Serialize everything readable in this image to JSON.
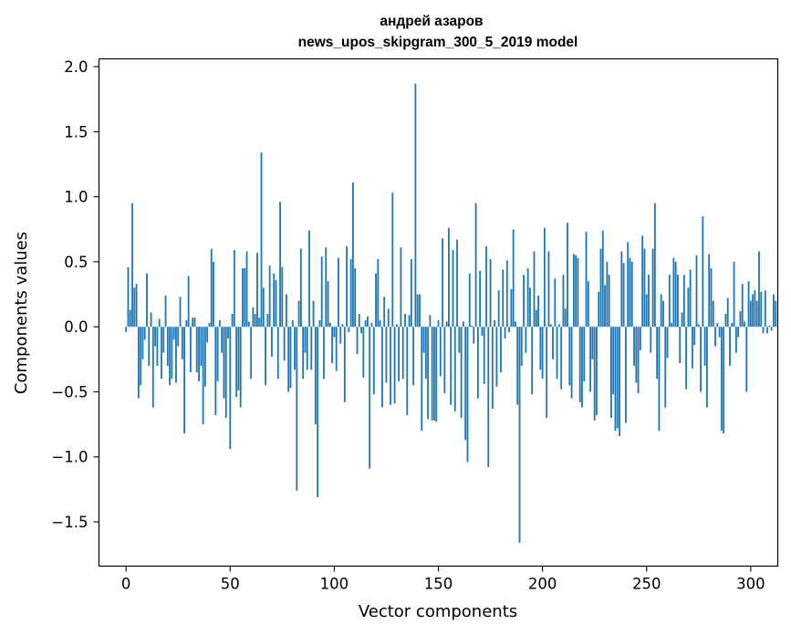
{
  "chart_data": {
    "type": "bar",
    "title": "андрей азаров",
    "subtitle": "news_upos_skipgram_300_5_2019 model",
    "xlabel": "Vector components",
    "ylabel": "Components values",
    "xlim": [
      -13,
      313
    ],
    "ylim": [
      -1.84,
      2.06
    ],
    "xticks": [
      0,
      50,
      100,
      150,
      200,
      250,
      300
    ],
    "xtick_labels": [
      "0",
      "50",
      "100",
      "150",
      "200",
      "250",
      "300"
    ],
    "yticks": [
      -1.5,
      -1.0,
      -0.5,
      0.0,
      0.5,
      1.0,
      1.5,
      2.0
    ],
    "ytick_labels": [
      "−1.5",
      "−1.0",
      "−0.5",
      "0.0",
      "0.5",
      "1.0",
      "1.5",
      "2.0"
    ],
    "bar_color": "#1f77b4",
    "grid": false,
    "series": [
      {
        "name": "components",
        "x_start": 0,
        "values": [
          -0.04,
          0.46,
          0.13,
          0.95,
          0.3,
          0.33,
          -0.55,
          -0.45,
          -0.25,
          -0.1,
          0.41,
          -0.3,
          0.11,
          -0.62,
          -0.15,
          -0.3,
          0.06,
          -0.4,
          -0.2,
          0.24,
          -0.3,
          -0.45,
          -0.4,
          -0.1,
          -0.43,
          -0.15,
          0.23,
          -0.25,
          -0.82,
          0.05,
          0.39,
          -0.35,
          0.07,
          0.07,
          -0.35,
          -0.42,
          -0.3,
          -0.75,
          -0.46,
          -0.12,
          0.03,
          0.6,
          0.5,
          -0.68,
          -0.42,
          0.05,
          -0.2,
          -0.55,
          -0.7,
          -0.09,
          -0.94,
          0.1,
          0.59,
          -0.54,
          -0.49,
          -0.62,
          0.45,
          0.45,
          0.58,
          0.04,
          -0.4,
          0.15,
          0.1,
          0.57,
          0.07,
          1.34,
          0.3,
          -0.45,
          0.1,
          0.47,
          -0.23,
          0.41,
          0.36,
          -0.4,
          0.96,
          0.46,
          -0.26,
          0.25,
          -0.5,
          -0.47,
          0.05,
          -0.33,
          -1.26,
          0.2,
          0.6,
          -0.4,
          -0.2,
          -0.33,
          0.74,
          -0.33,
          0.2,
          -0.75,
          -1.31,
          0.05,
          0.54,
          -0.4,
          0.61,
          0.35,
          0.03,
          -0.28,
          -0.08,
          -0.34,
          0.53,
          -0.13,
          0.02,
          -0.58,
          0.62,
          -0.04,
          0.52,
          1.11,
          0.45,
          -0.21,
          0.1,
          -0.05,
          -0.39,
          0.05,
          0.08,
          -1.09,
          0.03,
          -0.52,
          0.41,
          0.52,
          0.05,
          -0.62,
          0.23,
          -0.43,
          0.14,
          -0.6,
          1.03,
          -0.59,
          0.02,
          -0.42,
          0.61,
          -0.4,
          0.1,
          -0.68,
          0.09,
          0.52,
          -0.45,
          1.87,
          0.25,
          0.25,
          -0.8,
          -0.2,
          -0.4,
          -0.71,
          0.09,
          -0.72,
          -0.72,
          -0.73,
          0.05,
          -0.38,
          0.68,
          -0.51,
          0.04,
          0.76,
          -0.6,
          0.59,
          -0.65,
          0.67,
          -0.2,
          -0.7,
          0.04,
          -0.87,
          -1.04,
          0.41,
          0.01,
          -0.13,
          0.95,
          -0.55,
          0.43,
          -0.07,
          -0.44,
          0.62,
          -1.08,
          0.52,
          -0.63,
          0.05,
          -0.46,
          0.28,
          -0.35,
          0.44,
          -0.09,
          0.51,
          -0.04,
          0.29,
          0.75,
          0.04,
          -0.6,
          -1.66,
          -0.3,
          0.4,
          -0.2,
          0.45,
          0.3,
          -0.52,
          0.58,
          0.13,
          0.24,
          -0.33,
          -0.4,
          0.76,
          -0.7,
          0.58,
          0.02,
          -0.25,
          0.37,
          -0.4,
          0.02,
          -0.48,
          0.4,
          0.14,
          0.8,
          -0.45,
          -0.55,
          0.56,
          0.55,
          0.53,
          -0.58,
          -0.62,
          -0.42,
          0.73,
          0.35,
          -0.5,
          -0.25,
          -0.72,
          -0.68,
          0.27,
          0.6,
          0.74,
          0.32,
          0.5,
          0.4,
          -0.7,
          -0.52,
          -0.8,
          -0.78,
          -0.84,
          0.58,
          0.49,
          -0.74,
          0.65,
          0.53,
          0.5,
          -0.3,
          -0.43,
          -0.51,
          -0.18,
          0.7,
          0.6,
          0.25,
          0.4,
          -0.2,
          0.6,
          0.95,
          -0.4,
          -0.8,
          0.25,
          0.2,
          -0.62,
          -0.24,
          0.4,
          0.03,
          0.53,
          0.5,
          0.4,
          -0.28,
          0.11,
          0.4,
          -0.48,
          0.3,
          0.44,
          -0.32,
          -0.14,
          0.55,
          0.02,
          -0.5,
          0.85,
          -0.3,
          -0.62,
          0.56,
          0.45,
          0.2,
          -0.15,
          0.03,
          -0.08,
          -0.8,
          -0.82,
          0.1,
          0.22,
          -0.3,
          0.03,
          0.5,
          -0.2,
          -0.08,
          0.12,
          0.33,
          0.04,
          -0.5,
          0.35,
          0.2,
          0.25,
          0.28,
          0.2,
          0.58,
          0.27,
          -0.05,
          0.28,
          -0.05,
          0.01,
          -0.03,
          0.25,
          0.2,
          0.0
        ]
      }
    ]
  }
}
